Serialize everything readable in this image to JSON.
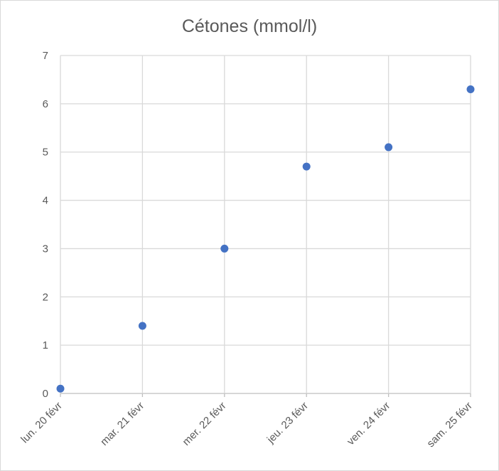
{
  "chart_data": {
    "type": "scatter",
    "title": "Cétones (mmol/l)",
    "xlabel": "",
    "ylabel": "",
    "categories": [
      "lun. 20 févr",
      "mar. 21 févr",
      "mer. 22 févr",
      "jeu. 23 févr",
      "ven. 24 févr",
      "sam. 25 févr"
    ],
    "x": [
      "2023-02-20",
      "2023-02-21",
      "2023-02-22",
      "2023-02-23",
      "2023-02-24",
      "2023-02-25"
    ],
    "y": [
      0.1,
      1.4,
      3.0,
      4.7,
      5.1,
      6.3
    ],
    "ylim": [
      0,
      7
    ],
    "yticks": [
      0,
      1,
      2,
      3,
      4,
      5,
      6,
      7
    ],
    "grid": true,
    "legend": "none",
    "colors": {
      "marker": "#4472c4",
      "grid": "#d9d9d9",
      "text": "#595959"
    }
  }
}
